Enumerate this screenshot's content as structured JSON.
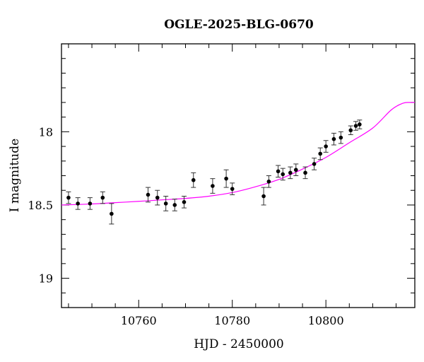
{
  "chart_data": {
    "type": "scatter",
    "title": "OGLE-2025-BLG-0670",
    "xlabel": "HJD - 2450000",
    "ylabel": "I magnitude",
    "xlim": [
      10743.5,
      10819
    ],
    "ylim": [
      19.2,
      17.4
    ],
    "y_inverted": true,
    "x_ticks": [
      10760,
      10780,
      10800
    ],
    "y_ticks": [
      18,
      18.5,
      19
    ],
    "x_tick_labels": [
      "10760",
      "10780",
      "10800"
    ],
    "y_tick_labels": [
      "18",
      "18.5",
      "19"
    ],
    "x_minor_step": 5,
    "y_minor_step": 0.1,
    "grid": false,
    "legend": null,
    "colors": {
      "points": "#000000",
      "model": "#ff00ff",
      "frame": "#000000"
    },
    "series": [
      {
        "kind": "points_with_errorbars",
        "x": [
          10745.0,
          10747.0,
          10749.6,
          10752.3,
          10754.2,
          10762.0,
          10764.0,
          10765.8,
          10767.7,
          10769.7,
          10771.7,
          10775.8,
          10778.7,
          10780.0,
          10786.7,
          10787.8,
          10789.8,
          10790.8,
          10792.4,
          10793.6,
          10795.6,
          10797.5,
          10798.8,
          10800.0,
          10801.7,
          10803.2,
          10805.3,
          10806.4,
          10807.2
        ],
        "y": [
          18.45,
          18.49,
          18.49,
          18.45,
          18.56,
          18.43,
          18.45,
          18.49,
          18.5,
          18.48,
          18.33,
          18.37,
          18.32,
          18.39,
          18.44,
          18.34,
          18.27,
          18.29,
          18.28,
          18.26,
          18.28,
          18.22,
          18.15,
          18.1,
          18.05,
          18.04,
          17.99,
          17.96,
          17.95
        ],
        "yerr": [
          0.04,
          0.04,
          0.04,
          0.04,
          0.07,
          0.05,
          0.05,
          0.05,
          0.04,
          0.04,
          0.05,
          0.05,
          0.06,
          0.04,
          0.06,
          0.04,
          0.04,
          0.04,
          0.04,
          0.04,
          0.04,
          0.04,
          0.04,
          0.04,
          0.04,
          0.04,
          0.03,
          0.03,
          0.03
        ]
      },
      {
        "kind": "model_curve",
        "x": [
          10743.5,
          10750,
          10755,
          10760,
          10765,
          10770,
          10775,
          10780,
          10785,
          10790,
          10795,
          10800,
          10805,
          10810,
          10814,
          10816.5,
          10818,
          10819
        ],
        "y": [
          18.5,
          18.493,
          18.484,
          18.475,
          18.465,
          18.455,
          18.44,
          18.415,
          18.375,
          18.325,
          18.255,
          18.175,
          18.075,
          17.975,
          17.85,
          17.805,
          17.8,
          17.8
        ]
      }
    ]
  }
}
